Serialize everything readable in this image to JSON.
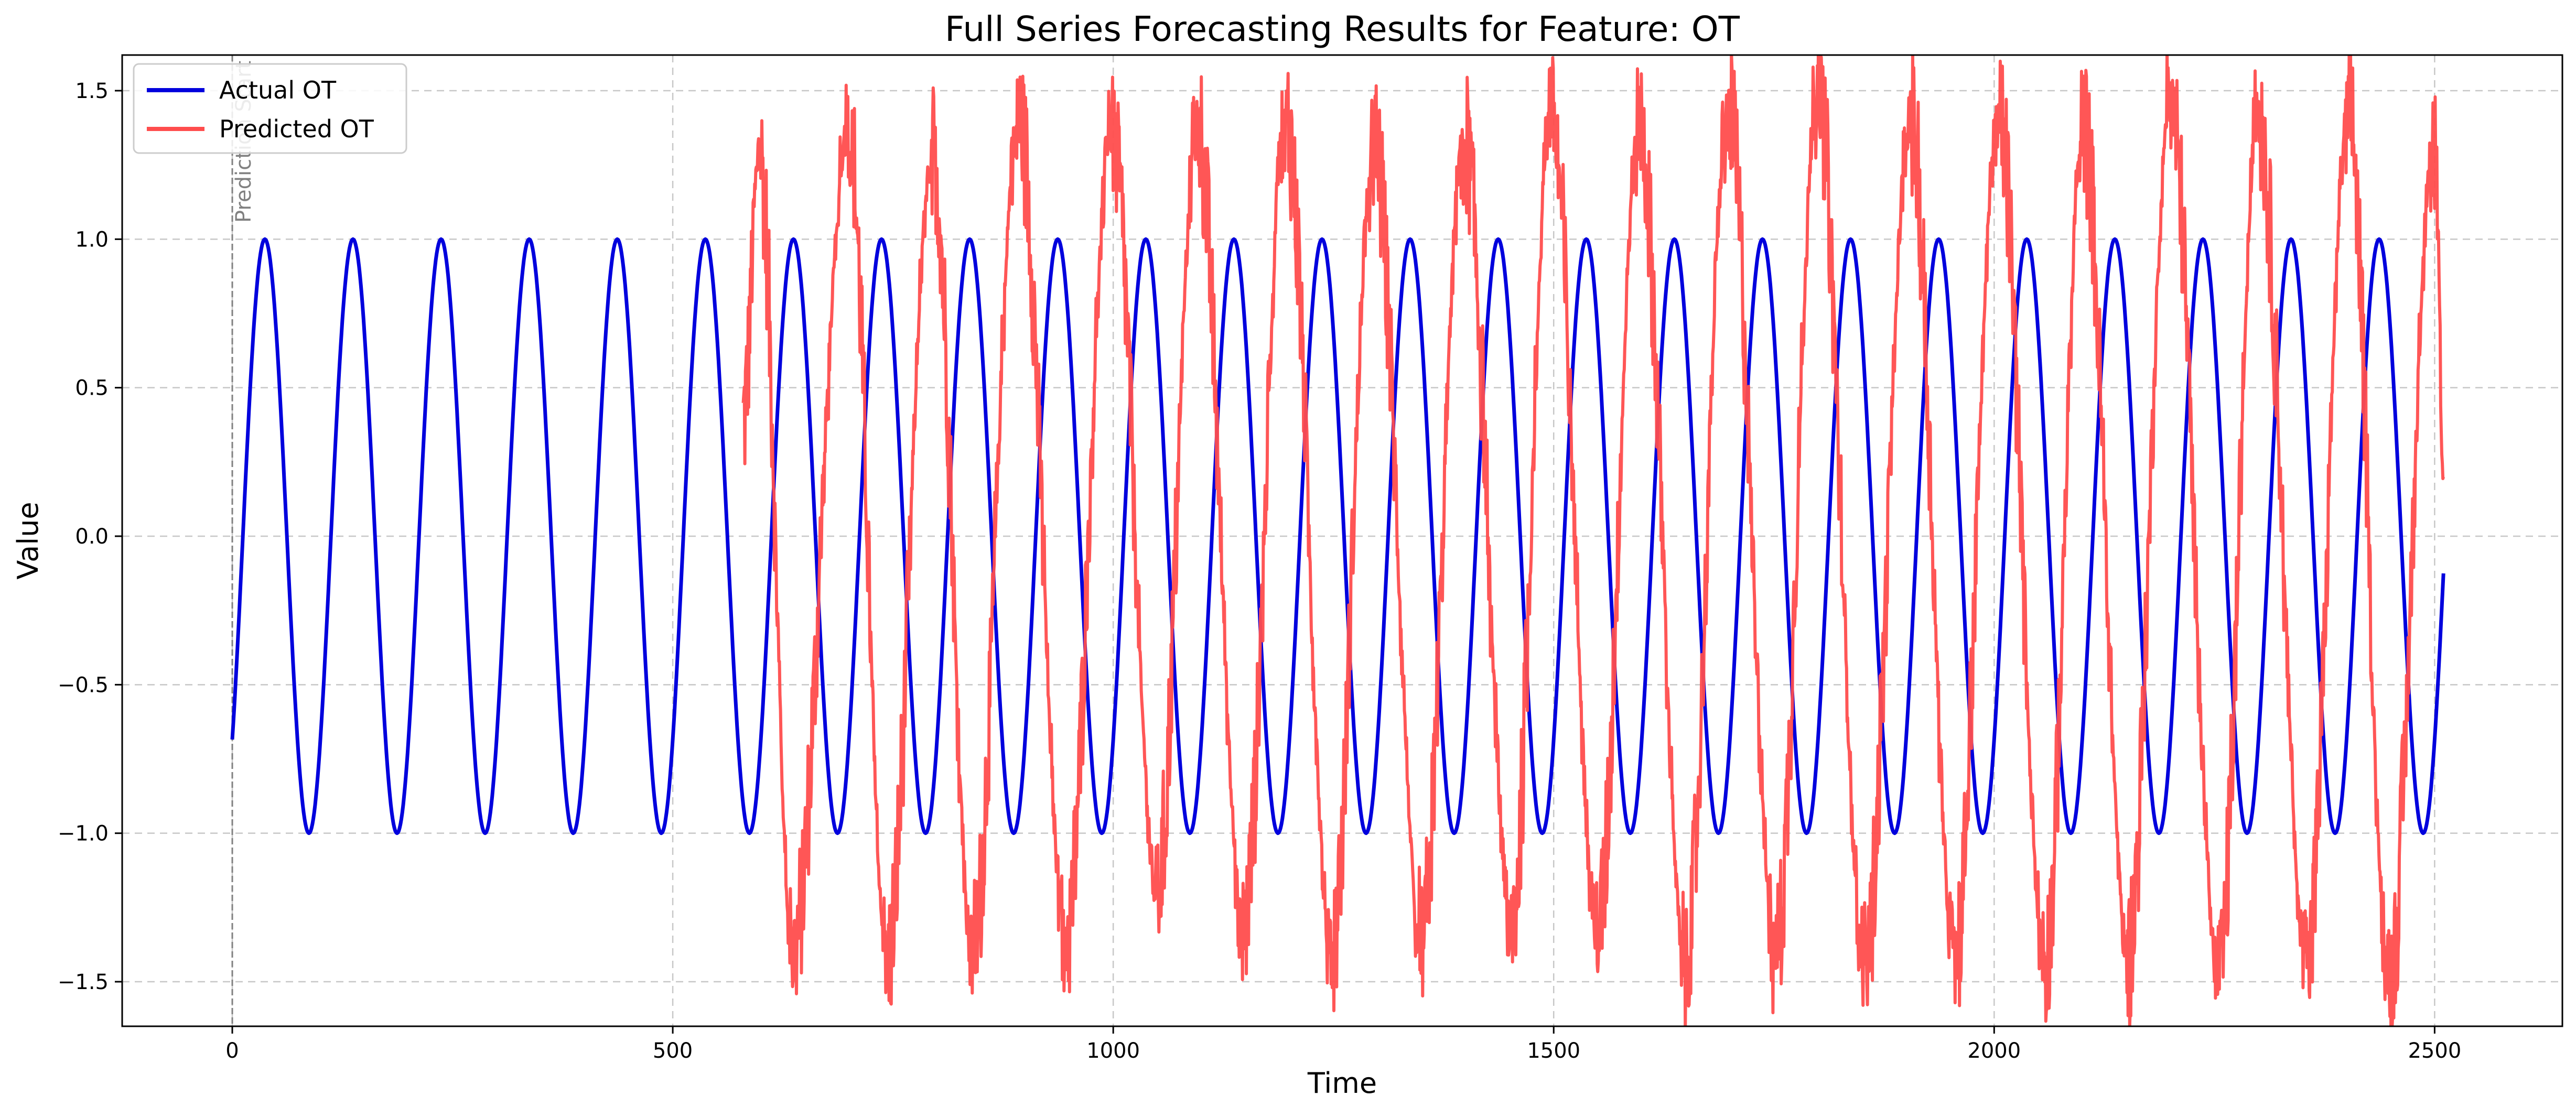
{
  "chart_data": {
    "type": "line",
    "title": "Full Series Forecasting Results for Feature: OT",
    "xlabel": "Time",
    "ylabel": "Value",
    "xlim": [
      -125,
      2645
    ],
    "ylim": [
      -1.65,
      1.62
    ],
    "x_ticks": [
      0,
      500,
      1000,
      1500,
      2000,
      2500
    ],
    "x_tick_labels": [
      "0",
      "500",
      "1000",
      "1500",
      "2000",
      "2500"
    ],
    "y_ticks": [
      -1.5,
      -1.0,
      -0.5,
      0.0,
      0.5,
      1.0,
      1.5
    ],
    "y_tick_labels": [
      "−1.5",
      "−1.0",
      "−0.5",
      "0.0",
      "0.5",
      "1.0",
      "1.5"
    ],
    "grid": true,
    "legend_position": "top-left",
    "vertical_marker": {
      "x": 0,
      "label": "Prediction Start",
      "color": "#808080"
    },
    "series": [
      {
        "name": "Actual OT",
        "color": "#0000dd",
        "form": "sine",
        "x_start": 0,
        "x_end": 2510,
        "period": 100,
        "amplitude": 1.0,
        "first_peak_x": 37,
        "start_value": -0.69,
        "end_value": -0.06
      },
      {
        "name": "Predicted OT",
        "color": "#ff4d4d",
        "x_start": 580,
        "x_end": 2510,
        "period": 100,
        "approx_min": -1.5,
        "approx_max": 1.48,
        "keypoints": [
          {
            "x": 580,
            "y": 0.4
          },
          {
            "x": 598,
            "y": 1.3
          },
          {
            "x": 636,
            "y": -1.4
          },
          {
            "x": 700,
            "y": 1.35
          },
          {
            "x": 743,
            "y": -1.43
          },
          {
            "x": 795,
            "y": 1.3
          },
          {
            "x": 840,
            "y": -1.4
          },
          {
            "x": 893,
            "y": 1.4
          },
          {
            "x": 946,
            "y": -1.35
          },
          {
            "x": 998,
            "y": 1.37
          },
          {
            "x": 1050,
            "y": -1.2
          },
          {
            "x": 1095,
            "y": 1.38
          },
          {
            "x": 1148,
            "y": -1.3
          },
          {
            "x": 1196,
            "y": 1.4
          },
          {
            "x": 1248,
            "y": -1.38
          },
          {
            "x": 1296,
            "y": 1.3
          },
          {
            "x": 1350,
            "y": -1.35
          },
          {
            "x": 1398,
            "y": 1.35
          },
          {
            "x": 1452,
            "y": -1.3
          },
          {
            "x": 1497,
            "y": 1.42
          },
          {
            "x": 1550,
            "y": -1.33
          },
          {
            "x": 1597,
            "y": 1.38
          },
          {
            "x": 1650,
            "y": -1.42
          },
          {
            "x": 1698,
            "y": 1.43
          },
          {
            "x": 1752,
            "y": -1.4
          },
          {
            "x": 1800,
            "y": 1.48
          },
          {
            "x": 1853,
            "y": -1.44
          },
          {
            "x": 1905,
            "y": 1.4
          },
          {
            "x": 1955,
            "y": -1.41
          },
          {
            "x": 2005,
            "y": 1.43
          },
          {
            "x": 2058,
            "y": -1.44
          },
          {
            "x": 2101,
            "y": 1.38
          },
          {
            "x": 2152,
            "y": -1.4
          },
          {
            "x": 2200,
            "y": 1.45
          },
          {
            "x": 2255,
            "y": -1.47
          },
          {
            "x": 2300,
            "y": 1.4
          },
          {
            "x": 2355,
            "y": -1.43
          },
          {
            "x": 2402,
            "y": 1.45
          },
          {
            "x": 2448,
            "y": -1.5
          },
          {
            "x": 2500,
            "y": 1.3
          },
          {
            "x": 2510,
            "y": 0.2
          }
        ]
      }
    ]
  }
}
